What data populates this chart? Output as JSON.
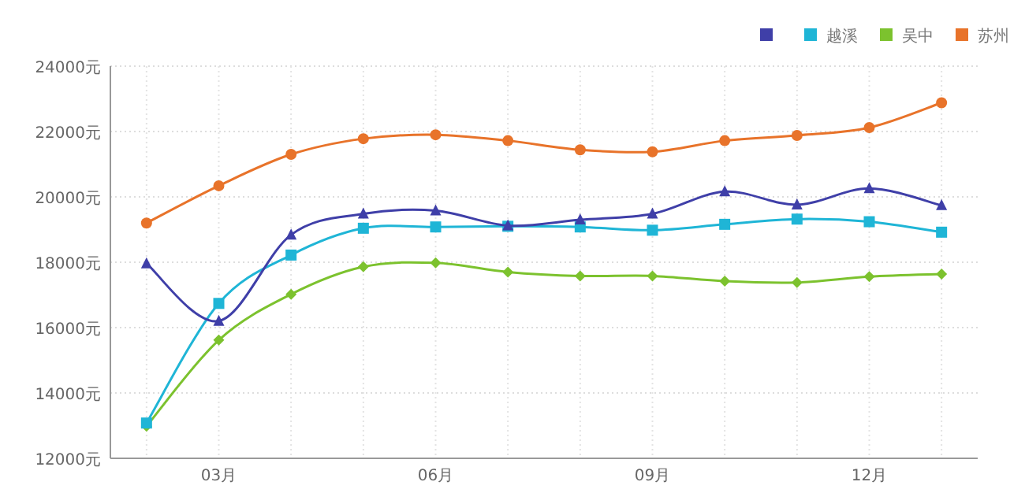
{
  "chart_data": {
    "type": "line",
    "categories": [
      null,
      "03月",
      null,
      null,
      "06月",
      null,
      null,
      "09月",
      null,
      null,
      "12月",
      null
    ],
    "ylim": [
      12000,
      24000
    ],
    "yticks": [
      {
        "value": 12000,
        "label": "12000元"
      },
      {
        "value": 14000,
        "label": "14000元"
      },
      {
        "value": 16000,
        "label": "16000元"
      },
      {
        "value": 18000,
        "label": "18000元"
      },
      {
        "value": 20000,
        "label": "20000元"
      },
      {
        "value": 22000,
        "label": "22000元"
      },
      {
        "value": 24000,
        "label": "24000元"
      }
    ],
    "grid": true,
    "legend": "top right",
    "line_style": "solid",
    "series": [
      {
        "color": "#3f3fa8",
        "marker": "triangle",
        "values": [
          17960,
          16200,
          18840,
          19480,
          19580,
          19120,
          19300,
          19480,
          20160,
          19760,
          20260,
          19740
        ]
      },
      {
        "name": "越溪",
        "color": "#1fb5d6",
        "marker": "square",
        "values": [
          13080,
          16740,
          18220,
          19040,
          19080,
          19100,
          19080,
          18980,
          19160,
          19320,
          19240,
          18920
        ]
      },
      {
        "name": "吴中",
        "color": "#7cc22e",
        "marker": "diamond",
        "values": [
          12980,
          15620,
          17020,
          17860,
          17980,
          17700,
          17580,
          17580,
          17420,
          17380,
          17560,
          17640
        ]
      },
      {
        "name": "苏州",
        "color": "#e8732a",
        "marker": "circle",
        "values": [
          19200,
          20340,
          21300,
          21780,
          21900,
          21720,
          21440,
          21380,
          21720,
          21880,
          22120,
          22880
        ]
      }
    ]
  }
}
